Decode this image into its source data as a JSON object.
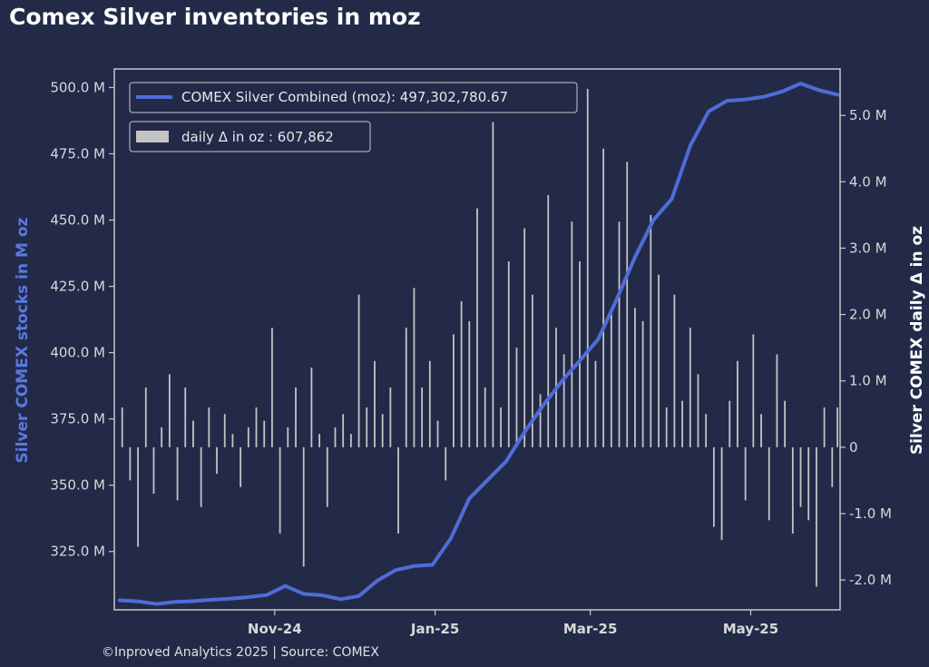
{
  "chart_data": {
    "type": "line",
    "title": "Comex Silver inventories in moz",
    "footer": "©Inproved Analytics 2025 | Source: COMEX",
    "ylabel_left": "Silver COMEX stocks in M oz",
    "ylabel_right": "Silver COMEX daily Δ in oz",
    "y_left_ticks": [
      "500.0 M",
      "475.0 M",
      "450.0 M",
      "425.0 M",
      "400.0 M",
      "375.0 M",
      "350.0 M",
      "325.0 M"
    ],
    "y_left_tick_values": [
      500,
      475,
      450,
      425,
      400,
      375,
      350,
      325
    ],
    "y_left_lim": [
      303,
      507
    ],
    "y_right_ticks": [
      "5.0 M",
      "4.0 M",
      "3.0 M",
      "2.0 M",
      "1.0 M",
      "0",
      "-1.0 M",
      "-2.0 M"
    ],
    "y_right_tick_values": [
      5,
      4,
      3,
      2,
      1,
      0,
      -1,
      -2
    ],
    "y_right_lim": [
      -2.45,
      5.7
    ],
    "x_ticks": [
      "Nov-24",
      "Jan-25",
      "Mar-25",
      "May-25"
    ],
    "x_tick_dates": [
      "2024-11-01",
      "2025-01-01",
      "2025-03-01",
      "2025-05-01"
    ],
    "x_lim": [
      "2024-09-01",
      "2025-06-04"
    ],
    "colors": {
      "line": "#4f6cd8",
      "bars": "#c4c4c4",
      "background": "#232a48",
      "frame": "#c8c8c8",
      "left_label": "#5a78e0",
      "right_label": "#ffffff"
    },
    "legend": {
      "line_label": "COMEX Silver Combined (moz): 497,302,780.67",
      "bar_label": "daily Δ in oz : 607,862",
      "placement": "top-left"
    },
    "series": [
      {
        "name": "COMEX Silver Combined (moz)",
        "type": "line",
        "x": [
          "2024-09-03",
          "2024-09-10",
          "2024-09-17",
          "2024-09-24",
          "2024-10-01",
          "2024-10-08",
          "2024-10-15",
          "2024-10-22",
          "2024-10-29",
          "2024-11-05",
          "2024-11-12",
          "2024-11-19",
          "2024-11-26",
          "2024-12-03",
          "2024-12-10",
          "2024-12-17",
          "2024-12-24",
          "2024-12-31",
          "2025-01-07",
          "2025-01-14",
          "2025-01-21",
          "2025-01-28",
          "2025-02-04",
          "2025-02-11",
          "2025-02-18",
          "2025-02-25",
          "2025-03-04",
          "2025-03-11",
          "2025-03-18",
          "2025-03-25",
          "2025-04-01",
          "2025-04-08",
          "2025-04-15",
          "2025-04-22",
          "2025-04-29",
          "2025-05-06",
          "2025-05-13",
          "2025-05-20",
          "2025-05-27",
          "2025-06-03"
        ],
        "values": [
          306.6,
          306.2,
          305.2,
          306.0,
          306.3,
          306.8,
          307.2,
          307.8,
          308.6,
          312.0,
          309.0,
          308.5,
          307.0,
          308.2,
          314.0,
          318.0,
          319.5,
          320.0,
          330.0,
          345.0,
          352.0,
          359.0,
          370.0,
          380.0,
          389.0,
          397.0,
          405.0,
          420.0,
          436.0,
          450.0,
          458.0,
          478.0,
          491.0,
          495.0,
          495.5,
          496.5,
          498.5,
          501.5,
          499.0,
          497.3
        ]
      },
      {
        "name": "daily Δ in oz",
        "type": "bar",
        "x": [
          "2024-09-04",
          "2024-09-07",
          "2024-09-10",
          "2024-09-13",
          "2024-09-16",
          "2024-09-19",
          "2024-09-22",
          "2024-09-25",
          "2024-09-28",
          "2024-10-01",
          "2024-10-04",
          "2024-10-07",
          "2024-10-10",
          "2024-10-13",
          "2024-10-16",
          "2024-10-19",
          "2024-10-22",
          "2024-10-25",
          "2024-10-28",
          "2024-10-31",
          "2024-11-03",
          "2024-11-06",
          "2024-11-09",
          "2024-11-12",
          "2024-11-15",
          "2024-11-18",
          "2024-11-21",
          "2024-11-24",
          "2024-11-27",
          "2024-11-30",
          "2024-12-03",
          "2024-12-06",
          "2024-12-09",
          "2024-12-12",
          "2024-12-15",
          "2024-12-18",
          "2024-12-21",
          "2024-12-24",
          "2024-12-27",
          "2024-12-30",
          "2025-01-02",
          "2025-01-05",
          "2025-01-08",
          "2025-01-11",
          "2025-01-14",
          "2025-01-17",
          "2025-01-20",
          "2025-01-23",
          "2025-01-26",
          "2025-01-29",
          "2025-02-01",
          "2025-02-04",
          "2025-02-07",
          "2025-02-10",
          "2025-02-13",
          "2025-02-16",
          "2025-02-19",
          "2025-02-22",
          "2025-02-25",
          "2025-02-28",
          "2025-03-03",
          "2025-03-06",
          "2025-03-09",
          "2025-03-12",
          "2025-03-15",
          "2025-03-18",
          "2025-03-21",
          "2025-03-24",
          "2025-03-27",
          "2025-03-30",
          "2025-04-02",
          "2025-04-05",
          "2025-04-08",
          "2025-04-11",
          "2025-04-14",
          "2025-04-17",
          "2025-04-20",
          "2025-04-23",
          "2025-04-26",
          "2025-04-29",
          "2025-05-02",
          "2025-05-05",
          "2025-05-08",
          "2025-05-11",
          "2025-05-14",
          "2025-05-17",
          "2025-05-20",
          "2025-05-23",
          "2025-05-26",
          "2025-05-29",
          "2025-06-01",
          "2025-06-03"
        ],
        "values": [
          0.6,
          -0.5,
          -1.5,
          0.9,
          -0.7,
          0.3,
          1.1,
          -0.8,
          0.9,
          0.4,
          -0.9,
          0.6,
          -0.4,
          0.5,
          0.2,
          -0.6,
          0.3,
          0.6,
          0.4,
          1.8,
          -1.3,
          0.3,
          0.9,
          -1.8,
          1.2,
          0.2,
          -0.9,
          0.3,
          0.5,
          0.2,
          2.3,
          0.6,
          1.3,
          0.5,
          0.9,
          -1.3,
          1.8,
          2.4,
          0.9,
          1.3,
          0.4,
          -0.5,
          1.7,
          2.2,
          1.9,
          3.6,
          0.9,
          4.9,
          0.6,
          2.8,
          1.5,
          3.3,
          2.3,
          0.8,
          3.8,
          1.8,
          1.4,
          3.4,
          2.8,
          5.4,
          1.3,
          4.5,
          2.1,
          3.4,
          4.3,
          2.1,
          1.9,
          3.5,
          2.6,
          0.6,
          2.3,
          0.7,
          1.8,
          1.1,
          0.5,
          -1.2,
          -1.4,
          0.7,
          1.3,
          -0.8,
          1.7,
          0.5,
          -1.1,
          1.4,
          0.7,
          -1.3,
          -0.9,
          -1.1,
          -2.1,
          0.6,
          -0.6,
          0.6
        ]
      }
    ]
  }
}
